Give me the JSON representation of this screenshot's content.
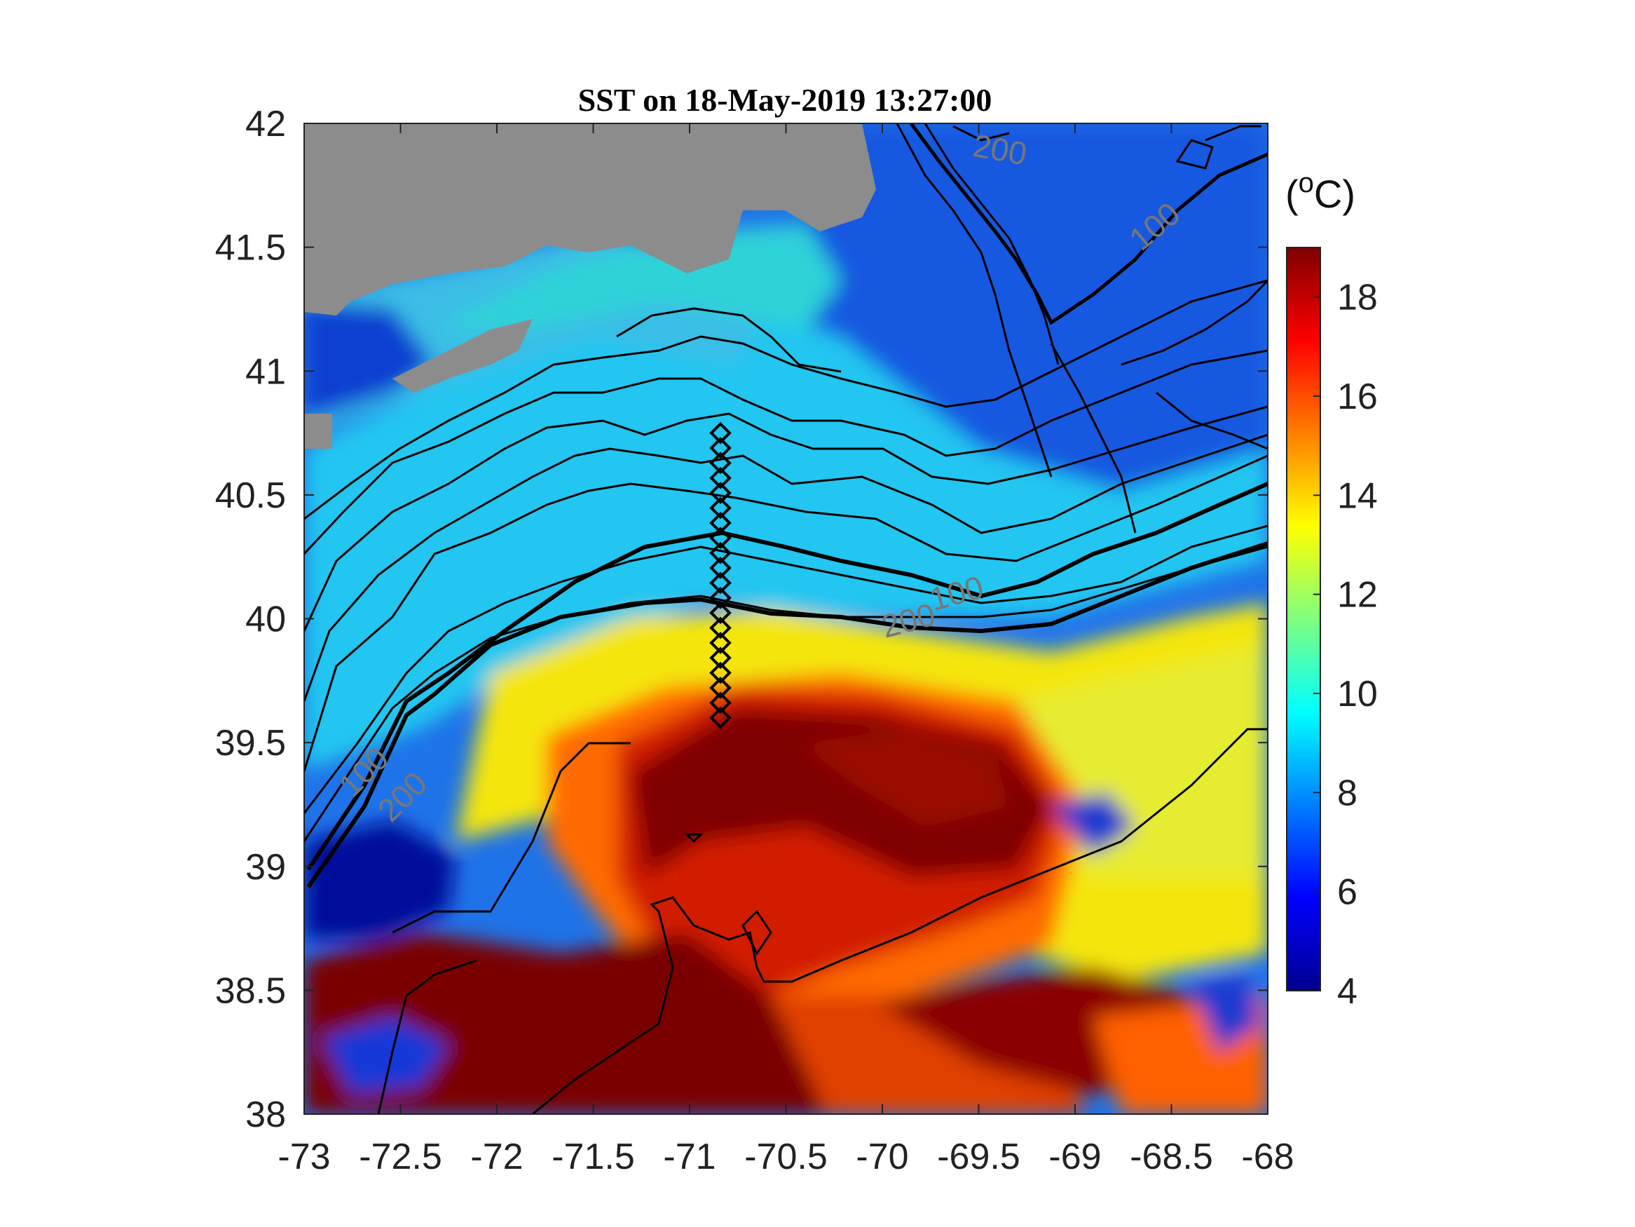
{
  "figure": {
    "title": "SST on 18-May-2019 13:27:00",
    "colorbar_unit_main": "(",
    "colorbar_unit_sup": "o",
    "colorbar_unit_tail": "C)"
  },
  "map": {
    "lon_range": [
      -73,
      -68
    ],
    "lat_range": [
      38,
      42
    ],
    "x_ticks": [
      {
        "v": -73,
        "label": "-73"
      },
      {
        "v": -72.5,
        "label": "-72.5"
      },
      {
        "v": -72,
        "label": "-72"
      },
      {
        "v": -71.5,
        "label": "-71.5"
      },
      {
        "v": -71,
        "label": "-71"
      },
      {
        "v": -70.5,
        "label": "-70.5"
      },
      {
        "v": -70,
        "label": "-70"
      },
      {
        "v": -69.5,
        "label": "-69.5"
      },
      {
        "v": -69,
        "label": "-69"
      },
      {
        "v": -68.5,
        "label": "-68.5"
      },
      {
        "v": -68,
        "label": "-68"
      }
    ],
    "y_ticks": [
      {
        "v": 38,
        "label": "38"
      },
      {
        "v": 38.5,
        "label": "38.5"
      },
      {
        "v": 39,
        "label": "39"
      },
      {
        "v": 39.5,
        "label": "39.5"
      },
      {
        "v": 40,
        "label": "40"
      },
      {
        "v": 40.5,
        "label": "40.5"
      },
      {
        "v": 41,
        "label": "41"
      },
      {
        "v": 41.5,
        "label": "41.5"
      },
      {
        "v": 42,
        "label": "42"
      }
    ],
    "contour_labels": [
      {
        "text": "200",
        "lon": -69.4,
        "lat": 41.85,
        "rot": 10
      },
      {
        "text": "100",
        "lon": -68.55,
        "lat": 41.55,
        "rot": -40
      },
      {
        "text": "100",
        "lon": -69.6,
        "lat": 40.06,
        "rot": -15
      },
      {
        "text": "200",
        "lon": -69.85,
        "lat": 39.95,
        "rot": -15
      },
      {
        "text": "100",
        "lon": -72.65,
        "lat": 39.35,
        "rot": -45
      },
      {
        "text": "200",
        "lon": -72.45,
        "lat": 39.25,
        "rot": -45
      }
    ],
    "transect": {
      "lon": -70.84,
      "lat_start": 39.6,
      "lat_end": 40.75,
      "count": 20
    },
    "colors": {
      "land": "#8c8c8c",
      "shelf_cold": "#1e64dc",
      "shelf_water": "#22c6f0",
      "slope_water": "#f5e000",
      "warm_core": "#7a0000",
      "front_orange": "#ff7a00"
    }
  },
  "colorbar": {
    "range": [
      4,
      19
    ],
    "ticks": [
      {
        "v": 4,
        "label": "4"
      },
      {
        "v": 6,
        "label": "6"
      },
      {
        "v": 8,
        "label": "8"
      },
      {
        "v": 10,
        "label": "10"
      },
      {
        "v": 12,
        "label": "12"
      },
      {
        "v": 14,
        "label": "14"
      },
      {
        "v": 16,
        "label": "16"
      },
      {
        "v": 18,
        "label": "18"
      }
    ],
    "stops": [
      "#00008f",
      "#0000ff",
      "#007fff",
      "#00ffff",
      "#7fff7f",
      "#ffff00",
      "#ff7f00",
      "#ff0000",
      "#7f0000"
    ]
  }
}
